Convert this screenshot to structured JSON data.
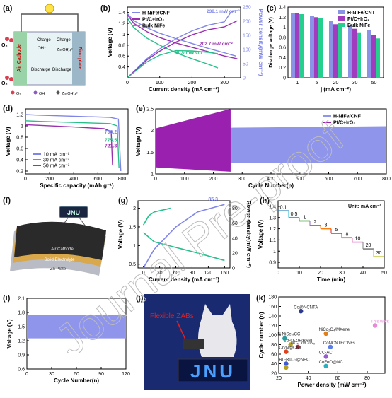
{
  "panel_labels": [
    "(a)",
    "(b)",
    "(c)",
    "(d)",
    "(e)",
    "(f)",
    "(g)",
    "(h)",
    "(i)",
    "(j)",
    "(k)"
  ],
  "a": {
    "air_cathode": "Air Cathode",
    "zinc_plate": "Zinc plate",
    "charge": "Charge",
    "discharge": "Discharge",
    "oh": "OH⁻",
    "zn_oh": "Zn(OH)₄²⁻",
    "o2": "O₂",
    "legend": [
      "O₂",
      "OH⁻",
      "Zn(OH)₄²⁻"
    ]
  },
  "f": {
    "badge": "JNU",
    "layers": [
      "Air Cathode",
      "Solid Electrolyte",
      "Zn Plate"
    ]
  },
  "j": {
    "label": "Flexible ZABs",
    "sign": "JNU"
  },
  "watermark": "Journal Pre-proof",
  "colors": {
    "blue": "#7f85e8",
    "purple": "#9b2fb0",
    "green": "#27c08a",
    "navy": "#2b3a8f",
    "red": "#e0401c"
  },
  "chart_data": [
    {
      "id": "b",
      "type": "line",
      "xlabel": "Current density (mA cm⁻²)",
      "ylabel": "Voltage (V)",
      "y2label": "Power density(mW cm⁻²)",
      "xlim": [
        0,
        350
      ],
      "ylim": [
        0.2,
        1.5
      ],
      "y2lim": [
        0,
        250
      ],
      "xticks": [
        0,
        100,
        200,
        300
      ],
      "yticks": [
        0.4,
        0.6,
        0.8,
        1.0,
        1.2,
        1.4
      ],
      "y2ticks": [
        0,
        50,
        100,
        150,
        200,
        250
      ],
      "legend": [
        "H-NiFe/CNF",
        "Pt/C+IrO₂",
        "Bulk NiFe"
      ],
      "annotations": [
        "238.1 mW cm⁻²",
        "202.7 mW cm⁻²",
        "96.6 mW cm⁻²"
      ],
      "series": [
        {
          "name": "H-NiFe/CNF",
          "voltage": [
            [
              0,
              1.38
            ],
            [
              20,
              1.25
            ],
            [
              60,
              1.12
            ],
            [
              100,
              1.02
            ],
            [
              150,
              0.92
            ],
            [
              200,
              0.83
            ],
            [
              250,
              0.74
            ],
            [
              300,
              0.66
            ],
            [
              335,
              0.6
            ]
          ],
          "power": [
            [
              0,
              0
            ],
            [
              60,
              67
            ],
            [
              100,
              102
            ],
            [
              150,
              138
            ],
            [
              200,
              166
            ],
            [
              250,
              186
            ],
            [
              300,
              198
            ],
            [
              320,
              232
            ],
            [
              335,
              238
            ]
          ]
        },
        {
          "name": "Pt/C+IrO₂",
          "voltage": [
            [
              0,
              1.36
            ],
            [
              20,
              1.2
            ],
            [
              60,
              1.05
            ],
            [
              100,
              0.94
            ],
            [
              150,
              0.84
            ],
            [
              200,
              0.76
            ],
            [
              250,
              0.68
            ],
            [
              300,
              0.6
            ],
            [
              340,
              0.55
            ]
          ],
          "power": [
            [
              0,
              0
            ],
            [
              60,
              63
            ],
            [
              100,
              94
            ],
            [
              150,
              126
            ],
            [
              200,
              152
            ],
            [
              250,
              170
            ],
            [
              300,
              180
            ],
            [
              340,
              202
            ]
          ]
        },
        {
          "name": "Bulk NiFe",
          "voltage": [
            [
              0,
              1.3
            ],
            [
              20,
              1.12
            ],
            [
              60,
              0.93
            ],
            [
              100,
              0.8
            ],
            [
              150,
              0.66
            ],
            [
              200,
              0.55
            ],
            [
              250,
              0.45
            ],
            [
              280,
              0.38
            ]
          ],
          "power": [
            [
              0,
              0
            ],
            [
              60,
              56
            ],
            [
              100,
              80
            ],
            [
              150,
              96
            ],
            [
              200,
              95
            ],
            [
              250,
              90
            ],
            [
              280,
              85
            ]
          ]
        }
      ]
    },
    {
      "id": "c",
      "type": "bar",
      "xlabel": "j (mA cm⁻²)",
      "ylabel": "Discharge voltage (V)",
      "categories": [
        "1",
        "5",
        "20",
        "30",
        "50"
      ],
      "ylim": [
        0,
        1.4
      ],
      "yticks": [
        0.0,
        0.2,
        0.4,
        0.6,
        0.8,
        1.0,
        1.2,
        1.4
      ],
      "legend": [
        "H-NiFe/CNT",
        "Pt/C+IrO₂",
        "Bulk NiFe"
      ],
      "series": [
        {
          "name": "H-NiFe/CNT",
          "values": [
            1.28,
            1.22,
            1.12,
            1.05,
            0.95
          ]
        },
        {
          "name": "Pt/C+IrO₂",
          "values": [
            1.28,
            1.2,
            1.06,
            0.97,
            0.85
          ]
        },
        {
          "name": "Bulk NiFe",
          "values": [
            1.26,
            1.18,
            1.02,
            0.9,
            0.78
          ]
        }
      ]
    },
    {
      "id": "d",
      "type": "line",
      "xlabel": "Specific capacity (mAh g⁻¹)",
      "ylabel": "Voltage (V)",
      "xlim": [
        0,
        850
      ],
      "ylim": [
        0.15,
        1.3
      ],
      "xticks": [
        0,
        200,
        400,
        600,
        800
      ],
      "yticks": [
        0.2,
        0.4,
        0.6,
        0.8,
        1.0,
        1.2
      ],
      "legend": [
        "10 mA cm⁻²",
        "30 mA cm⁻²",
        "50 mA cm⁻²"
      ],
      "annotations": [
        "790.2",
        "775.5",
        "721.3"
      ],
      "series": [
        {
          "name": "10 mA cm⁻²",
          "values": [
            [
              0,
              1.2
            ],
            [
              100,
              1.19
            ],
            [
              400,
              1.17
            ],
            [
              700,
              1.15
            ],
            [
              770,
              1.12
            ],
            [
              790,
              0.2
            ]
          ]
        },
        {
          "name": "30 mA cm⁻²",
          "values": [
            [
              0,
              1.09
            ],
            [
              100,
              1.08
            ],
            [
              400,
              1.06
            ],
            [
              700,
              1.04
            ],
            [
              760,
              1.0
            ],
            [
              775,
              0.25
            ]
          ]
        },
        {
          "name": "50 mA cm⁻²",
          "values": [
            [
              0,
              1.02
            ],
            [
              100,
              1.01
            ],
            [
              400,
              0.98
            ],
            [
              650,
              0.95
            ],
            [
              710,
              0.9
            ],
            [
              721,
              0.3
            ]
          ]
        }
      ]
    },
    {
      "id": "e",
      "type": "line",
      "xlabel": "Cycle Number(n)",
      "ylabel": "Voltage (V)",
      "xlim": [
        0,
        800
      ],
      "ylim": [
        1.0,
        2.5
      ],
      "xticks": [
        0,
        100,
        200,
        300,
        400,
        500,
        600,
        700,
        800
      ],
      "yticks": [
        1.0,
        1.5,
        2.0,
        2.5
      ],
      "legend": [
        "H-NiFe/CNF",
        "Pt/C+IrO₂"
      ],
      "series": [
        {
          "name": "H-NiFe/CNF",
          "band": [
            [
              0,
              1.25,
              2.05
            ],
            [
              800,
              1.25,
              2.1
            ]
          ]
        },
        {
          "name": "Pt/C+IrO₂",
          "band": [
            [
              0,
              1.15,
              2.05
            ],
            [
              260,
              1.05,
              2.5
            ]
          ]
        }
      ]
    },
    {
      "id": "g",
      "type": "line",
      "xlabel": "Current density (mA cm⁻²)",
      "ylabel": "Voltage (V)",
      "y2label": "Power density(mW cm⁻²)",
      "xlim": [
        -10,
        160
      ],
      "ylim": [
        0.4,
        2.2
      ],
      "y2lim": [
        0,
        90
      ],
      "xticks": [
        0,
        30,
        60,
        90,
        120,
        150
      ],
      "yticks": [
        0.5,
        1.0,
        1.5,
        2.0
      ],
      "y2ticks": [
        0,
        20,
        40,
        60,
        80
      ],
      "annotations": [
        "85.3"
      ],
      "series": [
        {
          "name": "charge",
          "values": [
            [
              0,
              1.55
            ],
            [
              10,
              1.8
            ],
            [
              20,
              1.9
            ],
            [
              50,
              2.0
            ]
          ]
        },
        {
          "name": "discharge",
          "values": [
            [
              0,
              1.35
            ],
            [
              20,
              1.1
            ],
            [
              60,
              0.95
            ],
            [
              100,
              0.8
            ],
            [
              150,
              0.6
            ]
          ]
        },
        {
          "name": "power",
          "values": [
            [
              0,
              0
            ],
            [
              20,
              25
            ],
            [
              60,
              55
            ],
            [
              100,
              75
            ],
            [
              150,
              85
            ]
          ]
        }
      ]
    },
    {
      "id": "h",
      "type": "line",
      "xlabel": "Time (min)",
      "ylabel": "Voltage (V)",
      "xlim": [
        0,
        50
      ],
      "ylim": [
        0.85,
        1.45
      ],
      "xticks": [
        0,
        10,
        20,
        30,
        40,
        50
      ],
      "yticks": [
        0.9,
        1.0,
        1.1,
        1.2,
        1.3,
        1.4
      ],
      "title": "Unit: mA cm⁻²",
      "steps": [
        "0.1",
        "0.5",
        "1",
        "2",
        "3",
        "5",
        "8",
        "10",
        "20",
        "30"
      ],
      "values": [
        1.36,
        1.3,
        1.27,
        1.23,
        1.2,
        1.16,
        1.12,
        1.08,
        1.02,
        0.95
      ]
    },
    {
      "id": "i",
      "type": "line",
      "xlabel": "Cycle Number(n)",
      "ylabel": "Voltage (V)",
      "xlim": [
        0,
        120
      ],
      "ylim": [
        0.6,
        2.1
      ],
      "xticks": [
        0,
        30,
        60,
        90,
        120
      ],
      "yticks": [
        0.6,
        0.9,
        1.2,
        1.5,
        1.8,
        2.1
      ],
      "band": [
        [
          0,
          1.25,
          1.75
        ],
        [
          120,
          1.25,
          1.75
        ]
      ]
    },
    {
      "id": "k",
      "type": "scatter",
      "xlabel": "Power density (mW cm⁻²)",
      "ylabel": "Cycle number (n)",
      "xlim": [
        20,
        92
      ],
      "ylim": [
        20,
        180
      ],
      "xticks": [
        20,
        40,
        60,
        80
      ],
      "yticks": [
        20,
        40,
        60,
        80,
        100,
        120,
        140,
        160,
        180
      ],
      "points": [
        {
          "label": "This work",
          "x": 85.3,
          "y": 120,
          "color": "#e78ad8"
        },
        {
          "label": "Co@NCNTA",
          "x": 35,
          "y": 150,
          "color": "#2b3a8f"
        },
        {
          "label": "NiCo₂O₄/MXene",
          "x": 52,
          "y": 103,
          "color": "#e0801c"
        },
        {
          "label": "N-NiSe₂/CC",
          "x": 24,
          "y": 93,
          "color": "#2a9a9a"
        },
        {
          "label": "Co-O-ZIF/PANI",
          "x": 28,
          "y": 80,
          "color": "#b5a020"
        },
        {
          "label": "NC-Co/CoNₓ",
          "x": 33,
          "y": 75,
          "color": "#b03040"
        },
        {
          "label": "CoNCNTF/CNFs",
          "x": 55,
          "y": 75,
          "color": "#5a7de8"
        },
        {
          "label": "Co/N@CNT",
          "x": 25,
          "y": 65,
          "color": "#e0401c"
        },
        {
          "label": "CC-AC",
          "x": 52,
          "y": 55,
          "color": "#9a5ad0"
        },
        {
          "label": "Ru-RuO₂@NPC",
          "x": 25,
          "y": 40,
          "color": "#3d5ad0"
        },
        {
          "label": "CoFeO@NC",
          "x": 52,
          "y": 35,
          "color": "#27b0c0"
        },
        {
          "label": "",
          "x": 25,
          "y": 32,
          "color": "#b5a020"
        }
      ]
    }
  ]
}
